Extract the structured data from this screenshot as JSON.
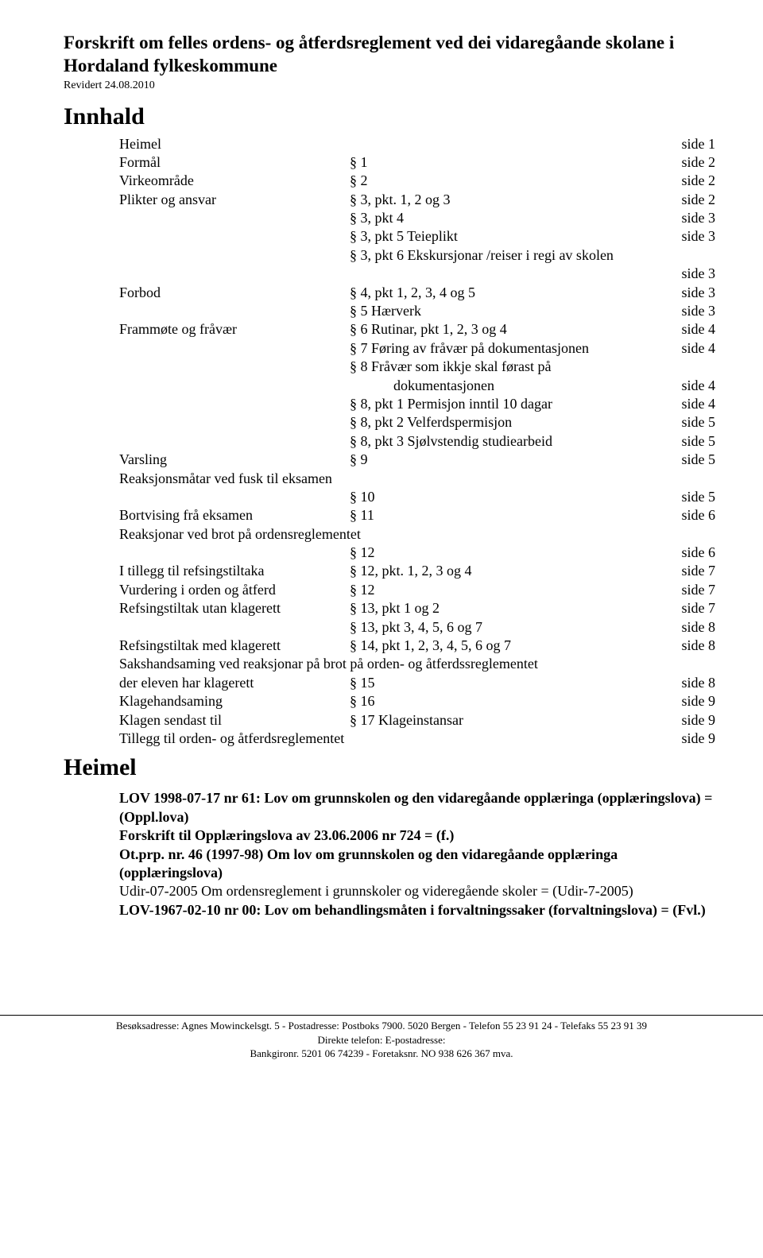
{
  "title_line1": "Forskrift om felles ordens- og åtferdsreglement ved dei vidaregåande skolane i",
  "title_line2": "Hordaland fylkeskommune",
  "revised": "Revidert 24.08.2010",
  "innhald_heading": "Innhald",
  "heimel_heading": "Heimel",
  "toc": [
    {
      "c1": "Heimel",
      "c2": "",
      "c3": "side  1"
    },
    {
      "c1": "Formål",
      "c2": "§ 1",
      "c3": "side  2"
    },
    {
      "c1": "Virkeområde",
      "c2": "§ 2",
      "c3": "side  2"
    },
    {
      "c1": "Plikter og ansvar",
      "c2": "§ 3, pkt. 1, 2 og 3",
      "c3": "side  2"
    },
    {
      "c1": "",
      "c2": "§ 3, pkt 4",
      "c3": "side  3"
    },
    {
      "c1": "",
      "c2": "§ 3, pkt 5 Teieplikt",
      "c3": "side  3"
    },
    {
      "c1": "",
      "c2": "§ 3, pkt 6 Ekskursjonar /reiser i regi av skolen",
      "c3": ""
    },
    {
      "c1": "",
      "c2": "",
      "c3": "side  3"
    },
    {
      "c1": "Forbod",
      "c2": "§ 4, pkt 1, 2, 3, 4 og 5",
      "c3": "side  3"
    },
    {
      "c1": "",
      "c2": "§ 5 Hærverk",
      "c3": "side  3"
    },
    {
      "c1": "Frammøte og fråvær",
      "c2": "§ 6 Rutinar, pkt 1, 2, 3 og 4",
      "c3": "side  4"
    },
    {
      "c1": "",
      "c2": "§ 7 Føring av fråvær på dokumentasjonen",
      "c3": "side  4"
    },
    {
      "c1": "",
      "c2": "§ 8 Fråvær som ikkje skal førast på",
      "c3": ""
    },
    {
      "c1": "",
      "c2_indent": true,
      "c2": "dokumentasjonen",
      "c3": "side  4"
    },
    {
      "c1": "",
      "c2": "§ 8, pkt 1 Permisjon inntil 10 dagar",
      "c3": "side  4"
    },
    {
      "c1": "",
      "c2": "§ 8, pkt 2 Velferdspermisjon",
      "c3": "side  5"
    },
    {
      "c1": "",
      "c2": "§ 8, pkt 3  Sjølvstendig studiearbeid",
      "c3": "side  5"
    },
    {
      "c1": "Varsling",
      "c2": "§ 9",
      "c3": "side  5"
    },
    {
      "c1_span": "Reaksjonsmåtar ved fusk til eksamen",
      "c3": ""
    },
    {
      "c1": "",
      "c2": "§ 10",
      "c3": "side  5"
    },
    {
      "c1": "Bortvising frå eksamen",
      "c2": "§ 11",
      "c3": "side  6"
    },
    {
      "c1_span": "Reaksjonar ved brot på ordensreglementet",
      "c3": ""
    },
    {
      "c1": "",
      "c2": "§ 12",
      "c3": "side  6"
    },
    {
      "c1": "I tillegg til refsingstiltaka",
      "c2": "§ 12, pkt. 1, 2, 3 og 4",
      "c3": "side  7"
    },
    {
      "c1": "Vurdering i orden og åtferd",
      "c2": "§ 12",
      "c3": "side  7"
    },
    {
      "c1": "Refsingstiltak utan klagerett",
      "c2": "§ 13, pkt 1 og 2",
      "c3": "side  7"
    },
    {
      "c1": "",
      "c2": "§ 13, pkt 3, 4, 5, 6 og 7",
      "c3": "side  8"
    },
    {
      "c1": "Refsingstiltak med klagerett",
      "c2": "§ 14, pkt 1, 2, 3, 4, 5, 6 og 7",
      "c3": "side  8"
    },
    {
      "c1_span": "Sakshandsaming ved reaksjonar på brot på orden- og åtferdssreglementet",
      "c3": ""
    },
    {
      "c1": "der eleven har klagerett",
      "c2": "§ 15",
      "c3": "side  8"
    },
    {
      "c1": "Klagehandsaming",
      "c2": "§ 16",
      "c3": "side  9"
    },
    {
      "c1": "Klagen sendast til",
      "c2": "§ 17     Klageinstansar",
      "c3": "side  9"
    },
    {
      "c1_span": "Tillegg til orden- og åtferdsreglementet",
      "c3": "side  9"
    }
  ],
  "refs": [
    {
      "bold": true,
      "text": "LOV 1998-07-17 nr 61: Lov om grunnskolen og den vidaregåande opplæringa (opplæringslova) = (Oppl.lova)"
    },
    {
      "bold": true,
      "text": "Forskrift til Opplæringslova av 23.06.2006 nr 724 = (f.)"
    },
    {
      "bold": true,
      "text": "Ot.prp. nr. 46 (1997-98) Om lov om grunnskolen og den vidaregåande opplæringa (opplæringslova)"
    },
    {
      "bold": false,
      "text": "Udir-07-2005 Om ordensreglement i grunnskoler og videregående skoler = (Udir-7-2005)"
    },
    {
      "bold": true,
      "text": "LOV-1967-02-10 nr 00: Lov om behandlingsmåten i forvaltningssaker (forvaltningslova) = (Fvl.)"
    }
  ],
  "footer": {
    "line1": "Besøksadresse: Agnes Mowinckelsgt. 5 - Postadresse: Postboks 7900.  5020 Bergen - Telefon 55 23 91 24 - Telefaks 55 23 91 39",
    "line2": "Direkte telefon:  E-postadresse:",
    "line3": "Bankgironr. 5201 06 74239 - Foretaksnr. NO 938 626 367 mva."
  }
}
